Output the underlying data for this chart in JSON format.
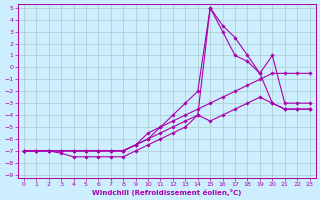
{
  "xlabel": "Windchill (Refroidissement éolien,°C)",
  "ylabel": "",
  "bg_color": "#cceeff",
  "line_color": "#aa00aa",
  "grid_color": "#aacccc",
  "xlim": [
    -0.5,
    23.5
  ],
  "ylim": [
    -9.3,
    5.3
  ],
  "xticks": [
    0,
    1,
    2,
    3,
    4,
    5,
    6,
    7,
    8,
    9,
    10,
    11,
    12,
    13,
    14,
    15,
    16,
    17,
    18,
    19,
    20,
    21,
    22,
    23
  ],
  "yticks": [
    5,
    4,
    3,
    2,
    1,
    0,
    -1,
    -2,
    -3,
    -4,
    -5,
    -6,
    -7,
    -8,
    -9
  ],
  "series": [
    {
      "x": [
        0,
        1,
        2,
        3,
        4,
        5,
        6,
        7,
        8,
        9,
        10,
        11,
        12,
        13,
        14,
        15,
        16,
        17,
        18,
        19,
        20,
        21,
        22,
        23
      ],
      "y": [
        -7,
        -7,
        -7,
        -7.2,
        -7.5,
        -7.5,
        -7.5,
        -7.5,
        -7.5,
        -7,
        -6.5,
        -6,
        -5.5,
        -5,
        -4,
        -4.5,
        -4,
        -3.5,
        -3,
        -2.5,
        -3,
        -3.5,
        -3.5,
        -3.5
      ]
    },
    {
      "x": [
        0,
        1,
        2,
        3,
        4,
        5,
        6,
        7,
        8,
        9,
        10,
        11,
        12,
        13,
        14,
        15,
        16,
        17,
        18,
        19,
        20,
        21,
        22,
        23
      ],
      "y": [
        -7,
        -7,
        -7,
        -7,
        -7,
        -7,
        -7,
        -7,
        -7,
        -6.5,
        -5.5,
        -5,
        -4.5,
        -4,
        -3.5,
        -3,
        -2.5,
        -2,
        -1.5,
        -1,
        -0.5,
        -0.5,
        -0.5,
        -0.5
      ]
    },
    {
      "x": [
        0,
        1,
        2,
        3,
        4,
        5,
        6,
        7,
        8,
        9,
        10,
        11,
        12,
        13,
        14,
        15,
        16,
        17,
        18,
        19,
        20,
        21,
        22,
        23
      ],
      "y": [
        -7,
        -7,
        -7,
        -7,
        -7,
        -7,
        -7,
        -7,
        -7,
        -6.5,
        -6,
        -5.5,
        -5,
        -4.5,
        -4,
        5,
        3,
        1,
        0.5,
        -0.5,
        -3,
        -3.5,
        -3.5,
        -3.5
      ]
    },
    {
      "x": [
        0,
        1,
        2,
        3,
        4,
        5,
        6,
        7,
        8,
        9,
        10,
        11,
        12,
        13,
        14,
        15,
        16,
        17,
        18,
        19,
        20,
        21,
        22,
        23
      ],
      "y": [
        -7,
        -7,
        -7,
        -7,
        -7,
        -7,
        -7,
        -7,
        -7,
        -6.5,
        -6,
        -5,
        -4,
        -3,
        -2,
        5,
        3.5,
        2.5,
        1,
        -0.5,
        1,
        -3,
        -3,
        -3
      ]
    }
  ]
}
